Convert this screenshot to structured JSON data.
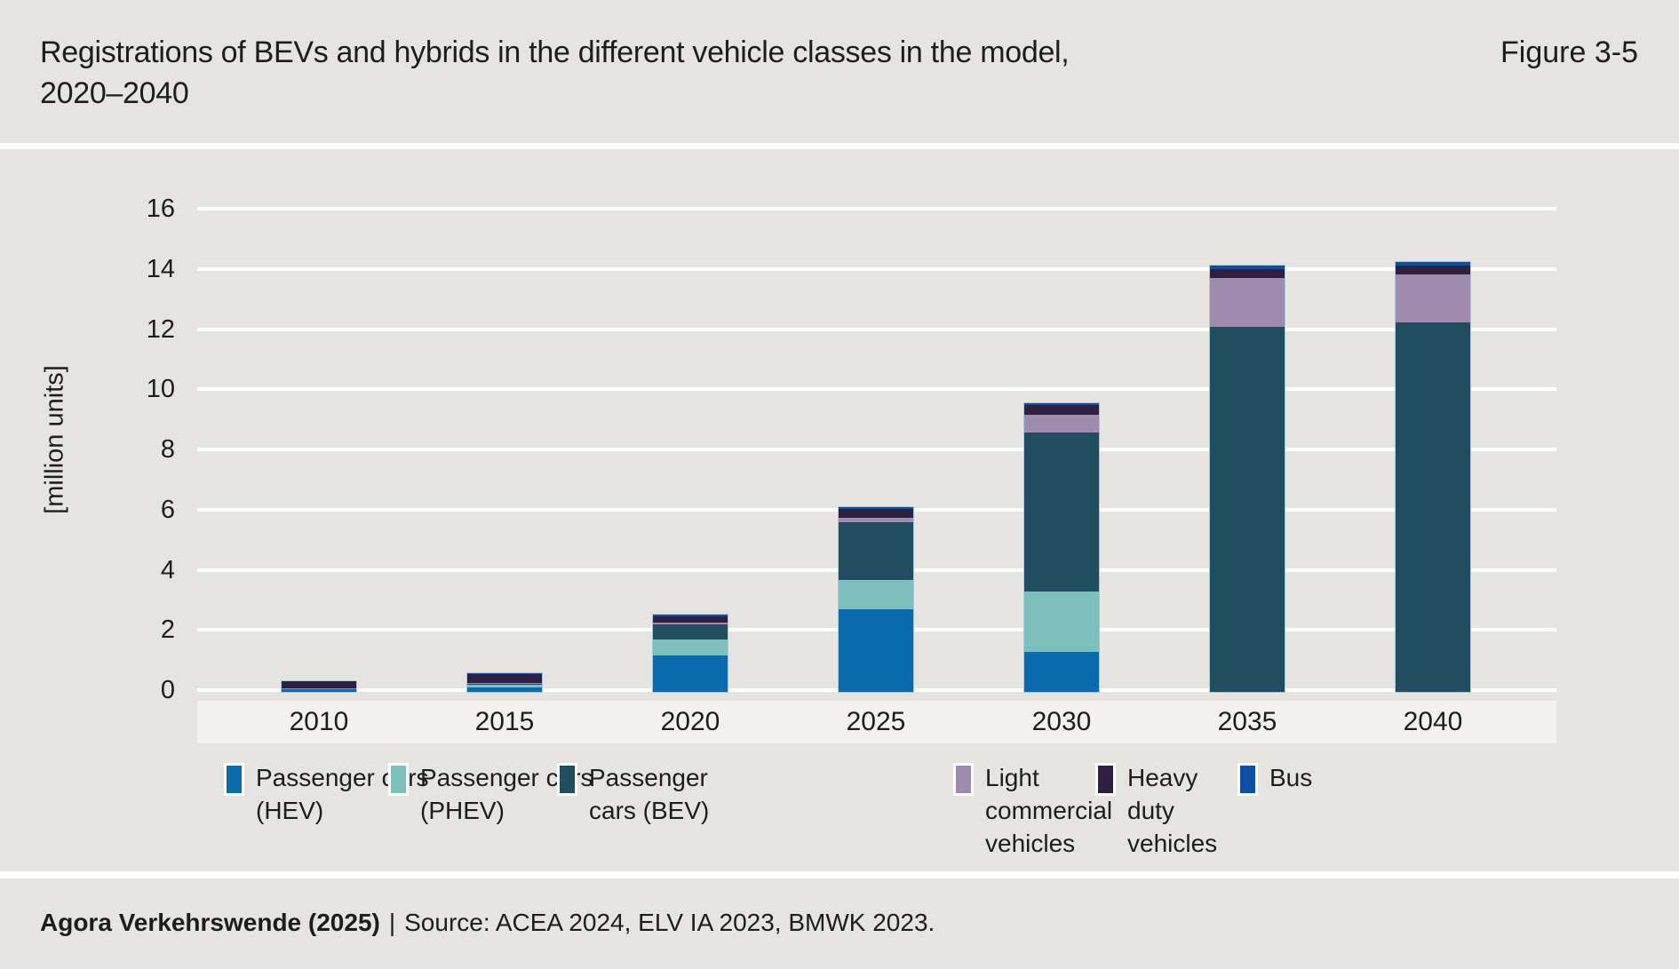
{
  "header": {
    "title_line1": "Registrations of BEVs and hybrids in the different vehicle classes in the model,",
    "title_line2": "2020–2040",
    "figure_label": "Figure 3-5"
  },
  "legend": {
    "items": [
      {
        "label": "Passenger cars\n(HEV)",
        "color_key": "hev"
      },
      {
        "label": "Passenger cars\n(PHEV)",
        "color_key": "phev"
      },
      {
        "label": "Passenger\ncars (BEV)",
        "color_key": "bev"
      },
      {
        "label": "Light\ncommercial\nvehicles",
        "color_key": "lcv"
      },
      {
        "label": "Heavy\nduty\nvehicles",
        "color_key": "hdv"
      },
      {
        "label": "Bus",
        "color_key": "bus"
      }
    ]
  },
  "footer": {
    "attribution": "Agora Verkehrswende (2025)",
    "divider": "|",
    "source": "Source: ACEA 2024, ELV IA 2023, BMWK 2023."
  },
  "colors": {
    "hev": "#0a6aab",
    "phev": "#7dbfbb",
    "bev": "#214d61",
    "lcv": "#9e8bad",
    "hdv": "#30203f",
    "bus": "#0d4fa1",
    "background": "#e5e4e0",
    "plot_strip": "#f2f1ee",
    "gridline": "#ffffff",
    "text": "#1d1d1b",
    "bar_outline": "#a9c9e2"
  },
  "chart_data": {
    "type": "bar",
    "stacked": true,
    "title": "Registrations of BEVs and hybrids in the different vehicle classes in the model, 2020–2040",
    "xlabel": "",
    "ylabel": "[million units]",
    "ylim": [
      0,
      16
    ],
    "ytick_step": 2,
    "grid": true,
    "legend_position": "bottom",
    "categories": [
      "2010",
      "2015",
      "2020",
      "2025",
      "2030",
      "2035",
      "2040"
    ],
    "series": [
      {
        "name": "Passenger cars (HEV)",
        "color_key": "hev",
        "values": [
          0.1,
          0.15,
          1.2,
          2.75,
          1.32,
          0,
          0
        ]
      },
      {
        "name": "Passenger cars (PHEV)",
        "color_key": "phev",
        "values": [
          0,
          0.08,
          0.54,
          0.98,
          2.02,
          0,
          0
        ]
      },
      {
        "name": "Passenger cars (BEV)",
        "color_key": "bev",
        "values": [
          0,
          0.05,
          0.5,
          1.9,
          5.29,
          12.14,
          12.29
        ]
      },
      {
        "name": "Light commercial vehicles",
        "color_key": "lcv",
        "values": [
          0.02,
          0.03,
          0.06,
          0.15,
          0.59,
          1.63,
          1.59
        ]
      },
      {
        "name": "Heavy duty vehicles",
        "color_key": "hdv",
        "values": [
          0.23,
          0.28,
          0.21,
          0.3,
          0.32,
          0.27,
          0.28
        ]
      },
      {
        "name": "Bus",
        "color_key": "bus",
        "values": [
          0.02,
          0.03,
          0.07,
          0.07,
          0.07,
          0.13,
          0.14
        ]
      }
    ]
  }
}
